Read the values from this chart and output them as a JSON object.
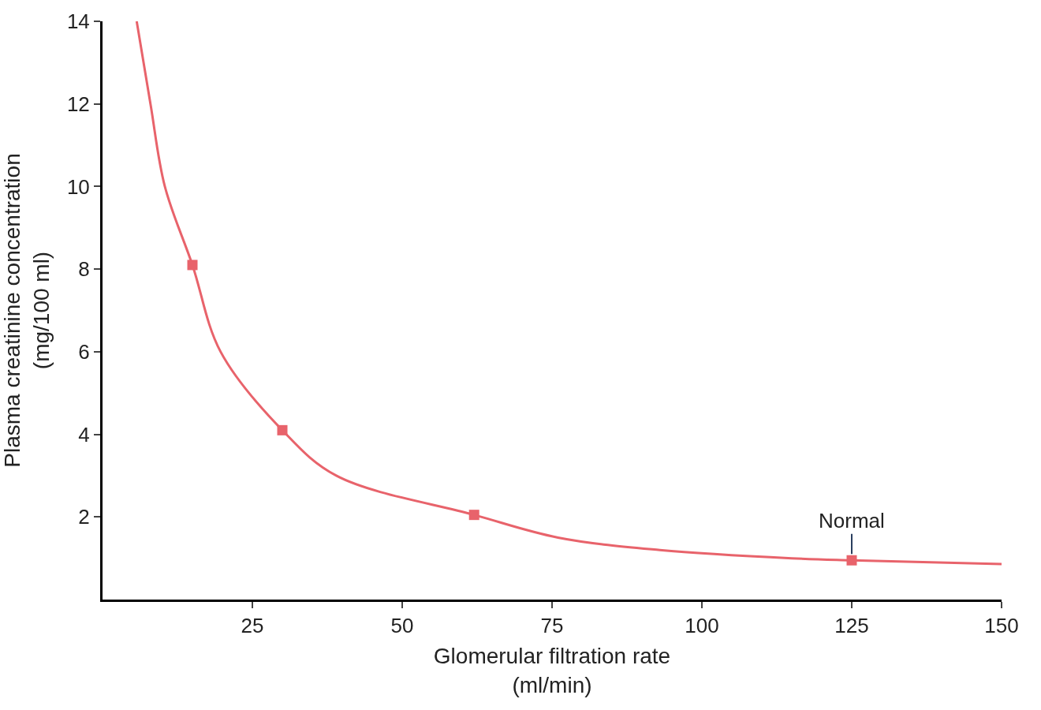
{
  "chart_data": {
    "type": "line",
    "xlabel": "Glomerular filtration rate\n(ml/min)",
    "ylabel": "Plasma creatinine concentration\n(mg/100 ml)",
    "series": [
      {
        "color": "#e8636b",
        "x": [
          5.7,
          8,
          10.4,
          15,
          19.7,
          30,
          39,
          62,
          76,
          93,
          115,
          125,
          150
        ],
        "values": [
          14,
          12,
          10,
          8.1,
          6,
          4.1,
          3,
          2.05,
          1.5,
          1.2,
          1,
          0.95,
          0.86
        ]
      },
      {
        "type": "scatter",
        "color": "#e8636b",
        "marker": "square",
        "x": [
          15,
          30,
          62,
          125
        ],
        "values": [
          8.1,
          4.1,
          2.05,
          0.95
        ]
      }
    ],
    "annotations": [
      {
        "text": "Normal",
        "x": 125,
        "y": 0.95
      }
    ],
    "xlim": [
      0,
      150
    ],
    "xticks": [
      25,
      50,
      75,
      100,
      125,
      150
    ],
    "ylim": [
      0,
      14
    ],
    "yticks": [
      2,
      4,
      6,
      8,
      10,
      12,
      14
    ],
    "legend": false
  }
}
